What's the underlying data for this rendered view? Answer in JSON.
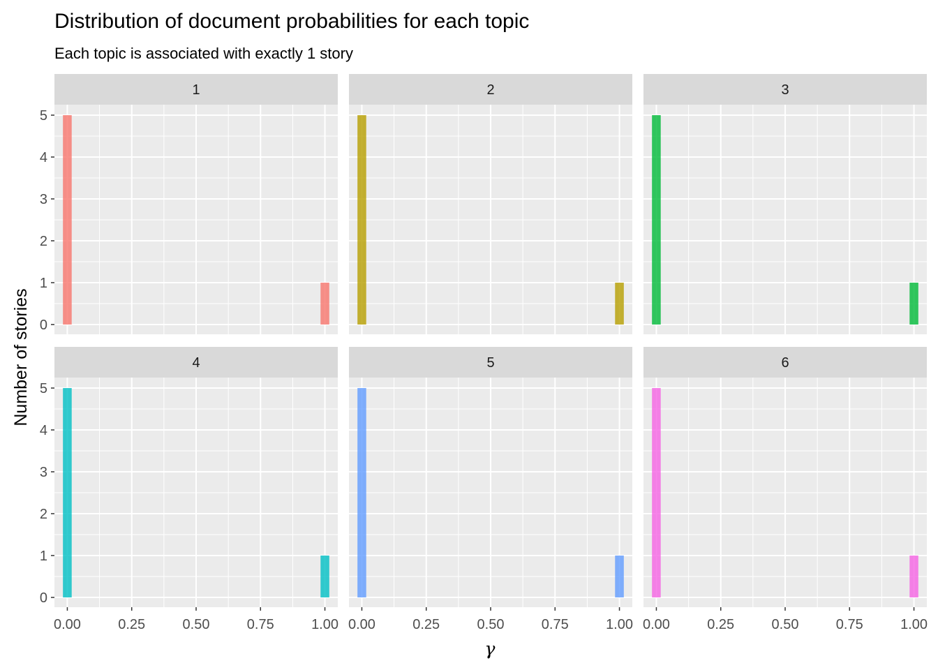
{
  "chart_data": {
    "type": "bar",
    "title": "Distribution of document probabilities for each topic",
    "subtitle": "Each topic is associated with exactly 1 story",
    "xlabel": "γ",
    "ylabel": "Number of stories",
    "xlim": [
      -0.05,
      1.05
    ],
    "ylim": [
      0,
      5.9
    ],
    "x_ticks": [
      0.0,
      0.25,
      0.5,
      0.75,
      1.0
    ],
    "x_tick_labels": [
      "0.00",
      "0.25",
      "0.50",
      "0.75",
      "1.00"
    ],
    "y_ticks": [
      0,
      1,
      2,
      3,
      4,
      5
    ],
    "y_tick_labels": [
      "0",
      "1",
      "2",
      "3",
      "4",
      "5"
    ],
    "grid": true,
    "legend": "none",
    "facets": [
      {
        "label": "1",
        "color": "#F8766D",
        "bins": [
          {
            "x": 0.0,
            "count": 5
          },
          {
            "x": 1.0,
            "count": 1
          }
        ]
      },
      {
        "label": "2",
        "color": "#B79F00",
        "bins": [
          {
            "x": 0.0,
            "count": 5
          },
          {
            "x": 1.0,
            "count": 1
          }
        ]
      },
      {
        "label": "3",
        "color": "#00BA38",
        "bins": [
          {
            "x": 0.0,
            "count": 5
          },
          {
            "x": 1.0,
            "count": 1
          }
        ]
      },
      {
        "label": "4",
        "color": "#00BFC4",
        "bins": [
          {
            "x": 0.0,
            "count": 5
          },
          {
            "x": 1.0,
            "count": 1
          }
        ]
      },
      {
        "label": "5",
        "color": "#619CFF",
        "bins": [
          {
            "x": 0.0,
            "count": 5
          },
          {
            "x": 1.0,
            "count": 1
          }
        ]
      },
      {
        "label": "6",
        "color": "#F564E3",
        "bins": [
          {
            "x": 0.0,
            "count": 5
          },
          {
            "x": 1.0,
            "count": 1
          }
        ]
      }
    ],
    "colors": {
      "panel_background": "#EBEBEB",
      "strip_background": "#D9D9D9",
      "grid_line": "#FFFFFF",
      "tick_mark": "#333333"
    }
  }
}
